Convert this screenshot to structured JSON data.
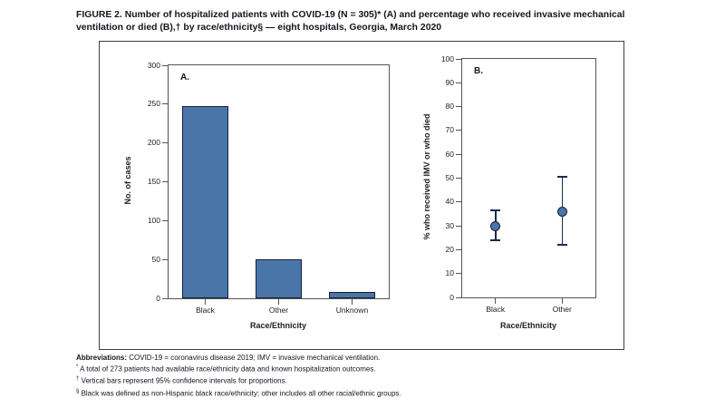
{
  "figure": {
    "title": "FIGURE 2. Number of hospitalized patients with COVID-19 (N = 305)* (A) and percentage who received invasive mechanical ventilation or died (B),† by race/ethnicity§ — eight hospitals, Georgia, March 2020"
  },
  "colors": {
    "bar_fill": "#4A75A9",
    "bar_border": "#181F33",
    "point_fill": "#4A75A9",
    "point_border": "#181F33",
    "error_bar": "#1C2B4A",
    "axis": "#54545A",
    "text": "#15151F"
  },
  "chart_data": [
    {
      "type": "bar",
      "panel_label": "A.",
      "categories": [
        "Black",
        "Other",
        "Unknown"
      ],
      "values": [
        247,
        50,
        8
      ],
      "title": "",
      "xlabel": "Race/Ethnicity",
      "ylabel": "No. of cases",
      "ylim": [
        0,
        300
      ],
      "ytick_step": 50,
      "grid": false,
      "legend": "none"
    },
    {
      "type": "scatter",
      "panel_label": "B.",
      "categories": [
        "Black",
        "Other"
      ],
      "series": [
        {
          "name": "% who received IMV or who died",
          "values": [
            30,
            36
          ],
          "ci_low": [
            24,
            22
          ],
          "ci_high": [
            36.5,
            50.5
          ]
        }
      ],
      "title": "",
      "xlabel": "Race/Ethnicity",
      "ylabel": "% who received IMV or who died",
      "ylim": [
        0,
        100
      ],
      "ytick_step": 10,
      "grid": false,
      "legend": "none",
      "note": "vertical bars are 95% confidence intervals"
    }
  ],
  "footnotes": {
    "abbreviations_label": "Abbreviations:",
    "abbreviations_text": " COVID-19 = coronavirus disease 2019; IMV = invasive mechanical ventilation.",
    "notes": [
      {
        "marker": "*",
        "text": " A total of 273 patients had available race/ethnicity data and known hospitalization outcomes."
      },
      {
        "marker": "†",
        "text": " Vertical bars represent 95% confidence intervals for proportions."
      },
      {
        "marker": "§",
        "text": " Black was defined as non-Hispanic black race/ethnicity; other includes all other racial/ethnic groups."
      }
    ]
  }
}
